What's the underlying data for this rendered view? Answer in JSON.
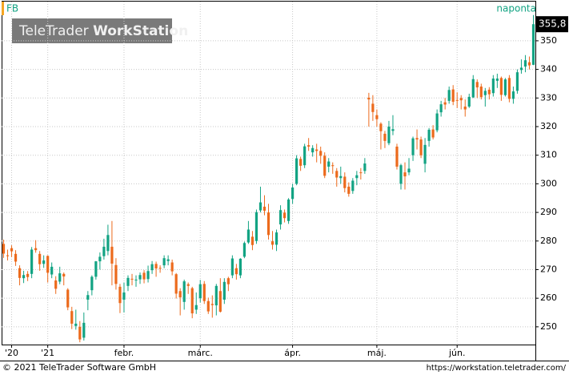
{
  "chart_data": {
    "type": "candlestick",
    "title": "FB",
    "interval": "naponta",
    "categories": [
      null,
      null,
      "'20",
      null,
      null,
      null,
      null,
      null,
      null,
      null,
      null,
      "'21",
      null,
      null,
      null,
      null,
      null,
      null,
      null,
      null,
      null,
      null,
      null,
      null,
      null,
      null,
      null,
      null,
      null,
      null,
      "febr.",
      null,
      null,
      null,
      null,
      null,
      null,
      null,
      null,
      null,
      null,
      null,
      null,
      null,
      null,
      null,
      null,
      null,
      null,
      "márc.",
      null,
      null,
      null,
      null,
      null,
      null,
      null,
      null,
      null,
      null,
      null,
      null,
      null,
      null,
      null,
      null,
      null,
      null,
      null,
      null,
      null,
      null,
      "ápr.",
      null,
      null,
      null,
      null,
      null,
      null,
      null,
      null,
      null,
      null,
      null,
      null,
      null,
      null,
      null,
      null,
      null,
      null,
      null,
      null,
      "máj.",
      null,
      null,
      null,
      null,
      null,
      null,
      null,
      null,
      null,
      null,
      null,
      null,
      null,
      null,
      null,
      null,
      null,
      null,
      null,
      "jún.",
      null,
      null,
      null,
      null,
      null,
      null,
      null,
      null,
      null,
      null,
      null,
      null,
      null,
      null,
      null,
      null,
      null,
      null,
      null
    ],
    "open": [
      279.0,
      275.0,
      277.5,
      275.5,
      270.5,
      267.0,
      268.5,
      268.5,
      277.5,
      275.5,
      272.0,
      274.8,
      268.3,
      266.2,
      265.8,
      268.5,
      263.0,
      255.5,
      250.3,
      250.0,
      246.2,
      259.5,
      262.8,
      267.5,
      272.9,
      274.7,
      276.5,
      278.0,
      271.6,
      264.0,
      259.5,
      264.3,
      266.8,
      266.4,
      266.6,
      268.9,
      266.7,
      269.8,
      272.0,
      270.6,
      271.5,
      273.0,
      272.5,
      268.4,
      262.5,
      258.7,
      264.9,
      263.5,
      256.0,
      260.0,
      265.0,
      259.0,
      258.0,
      257.5,
      262.5,
      259.5,
      267.0,
      268.0,
      270.5,
      268.0,
      274.5,
      279.5,
      281.5,
      280.0,
      290.7,
      292.0,
      290.0,
      279.9,
      278.7,
      285.8,
      289.9,
      287.0,
      294.7,
      300.0,
      308.7,
      306.5,
      313.5,
      311.0,
      312.0,
      311.5,
      309.8,
      306.0,
      306.5,
      304.5,
      302.0,
      302.5,
      299.0,
      297.5,
      302.0,
      304.0,
      304.5,
      330.1,
      328.0,
      324.0,
      321.0,
      317.5,
      314.2,
      318.5,
      313.0,
      300.0,
      304.0,
      304.0,
      310.0,
      316.0,
      315.5,
      307.0,
      315.0,
      319.0,
      318.7,
      325.0,
      328.5,
      329.0,
      333.0,
      329.3,
      330.0,
      327.0,
      327.0,
      330.2,
      335.6,
      334.0,
      331.0,
      332.9,
      331.7,
      336.0,
      337.0,
      331.0,
      337.0,
      329.7,
      332.5,
      339.8,
      341.0,
      342.5,
      341.6
    ],
    "high": [
      280.5,
      277.0,
      278.5,
      276.8,
      271.5,
      269.6,
      269.5,
      277.9,
      280.3,
      276.5,
      275.0,
      275.0,
      272.5,
      267.7,
      271.0,
      269.0,
      263.5,
      257.0,
      256.0,
      252.0,
      255.0,
      262.5,
      268.0,
      273.0,
      276.0,
      280.8,
      285.7,
      287.0,
      274.0,
      265.0,
      265.5,
      268.0,
      268.5,
      268.0,
      269.0,
      269.8,
      271.4,
      273.0,
      272.8,
      271.5,
      275.0,
      275.0,
      273.5,
      268.8,
      263.5,
      266.5,
      265.5,
      264.0,
      262.0,
      266.4,
      266.0,
      260.2,
      261.0,
      265.0,
      267.0,
      267.0,
      267.5,
      275.0,
      272.0,
      274.0,
      279.8,
      287.0,
      283.5,
      291.0,
      299.0,
      296.0,
      293.0,
      283.5,
      284.0,
      292.5,
      291.0,
      295.0,
      300.0,
      310.0,
      309.5,
      314.0,
      316.0,
      313.5,
      314.0,
      313.0,
      311.0,
      309.0,
      307.5,
      305.5,
      306.0,
      304.0,
      300.5,
      302.0,
      304.5,
      305.5,
      309.0,
      331.8,
      331.0,
      326.0,
      321.5,
      318.5,
      322.0,
      324.0,
      314.0,
      307.0,
      307.5,
      309.0,
      316.5,
      319.0,
      316.5,
      316.0,
      319.5,
      320.5,
      326.0,
      329.0,
      330.0,
      334.0,
      334.5,
      332.0,
      331.0,
      329.5,
      331.5,
      338.0,
      336.5,
      335.0,
      333.5,
      333.8,
      338.0,
      338.5,
      337.5,
      337.0,
      338.0,
      334.0,
      340.0,
      343.5,
      345.0,
      344.5,
      359.0
    ],
    "low": [
      274.1,
      273.2,
      274.4,
      271.3,
      264.5,
      265.3,
      266.0,
      267.0,
      275.9,
      269.6,
      270.6,
      265.5,
      267.0,
      261.5,
      264.9,
      264.5,
      255.8,
      249.2,
      249.0,
      244.6,
      245.2,
      255.8,
      261.0,
      266.5,
      270.0,
      273.5,
      275.0,
      264.5,
      263.0,
      254.8,
      255.0,
      262.5,
      264.5,
      264.0,
      265.0,
      265.2,
      265.5,
      268.5,
      267.5,
      268.9,
      270.5,
      271.5,
      268.0,
      259.9,
      254.0,
      256.0,
      261.5,
      253.0,
      254.5,
      258.5,
      258.0,
      254.5,
      253.2,
      254.0,
      255.0,
      258.0,
      262.5,
      267.0,
      266.5,
      267.0,
      274.0,
      279.0,
      276.8,
      279.0,
      290.0,
      289.0,
      280.5,
      277.0,
      276.5,
      284.0,
      286.5,
      286.0,
      293.0,
      299.5,
      304.5,
      305.5,
      311.5,
      309.5,
      307.5,
      307.0,
      302.0,
      304.0,
      303.5,
      299.0,
      300.0,
      297.0,
      295.5,
      296.5,
      299.5,
      301.5,
      303.5,
      320.0,
      322.0,
      320.0,
      312.0,
      312.5,
      313.5,
      317.0,
      305.0,
      298.0,
      298.0,
      303.0,
      308.0,
      312.0,
      309.0,
      304.0,
      313.0,
      315.5,
      318.0,
      323.5,
      326.0,
      328.0,
      327.5,
      326.5,
      326.0,
      323.5,
      326.5,
      330.0,
      330.0,
      329.5,
      327.0,
      329.5,
      330.5,
      333.5,
      329.0,
      330.5,
      328.5,
      328.0,
      331.5,
      338.5,
      339.0,
      340.0,
      341.5
    ],
    "close": [
      275.6,
      274.7,
      276.4,
      272.8,
      267.1,
      268.1,
      267.4,
      277.0,
      276.8,
      271.9,
      273.2,
      268.9,
      271.0,
      263.3,
      268.7,
      267.6,
      256.8,
      251.1,
      251.1,
      245.6,
      251.4,
      261.1,
      267.5,
      272.9,
      274.5,
      278.0,
      282.1,
      272.1,
      265.0,
      258.3,
      262.0,
      267.1,
      266.7,
      266.5,
      268.1,
      266.6,
      269.5,
      271.9,
      270.4,
      270.5,
      274.0,
      273.6,
      269.4,
      261.6,
      260.3,
      265.9,
      264.3,
      254.7,
      257.6,
      264.9,
      259.0,
      255.4,
      257.6,
      264.3,
      255.3,
      265.7,
      264.9,
      273.9,
      268.4,
      273.8,
      279.3,
      284.0,
      278.6,
      290.1,
      293.5,
      290.6,
      282.1,
      278.7,
      283.0,
      290.8,
      288.0,
      294.5,
      298.7,
      308.9,
      306.3,
      313.1,
      313.0,
      312.5,
      311.5,
      309.8,
      302.8,
      307.8,
      306.2,
      302.2,
      302.7,
      298.5,
      296.5,
      301.1,
      303.0,
      303.9,
      307.1,
      329.5,
      325.1,
      322.6,
      318.4,
      315.0,
      320.0,
      319.1,
      306.0,
      306.5,
      302.6,
      305.3,
      315.9,
      315.5,
      310.0,
      313.6,
      318.9,
      316.2,
      324.6,
      327.8,
      327.7,
      332.8,
      328.7,
      329.1,
      329.2,
      326.0,
      330.4,
      336.6,
      333.7,
      330.3,
      332.5,
      331.3,
      336.8,
      336.8,
      331.1,
      336.5,
      329.7,
      332.3,
      339.0,
      340.6,
      343.2,
      341.4,
      355.8
    ],
    "last_label": "355,8",
    "up_color": "#12a383",
    "down_color": "#ec6a1c",
    "ylim": [
      243.8,
      363.7
    ],
    "yticks": [
      250,
      260,
      270,
      280,
      290,
      300,
      310,
      320,
      330,
      340,
      350
    ],
    "grid": true
  },
  "logo": {
    "light": "TeleTrader",
    "bold": "WorkStation"
  },
  "footer": {
    "copyright": "© 2021 TeleTrader Software GmbH",
    "url": "https://workstation.teletrader.com/"
  }
}
